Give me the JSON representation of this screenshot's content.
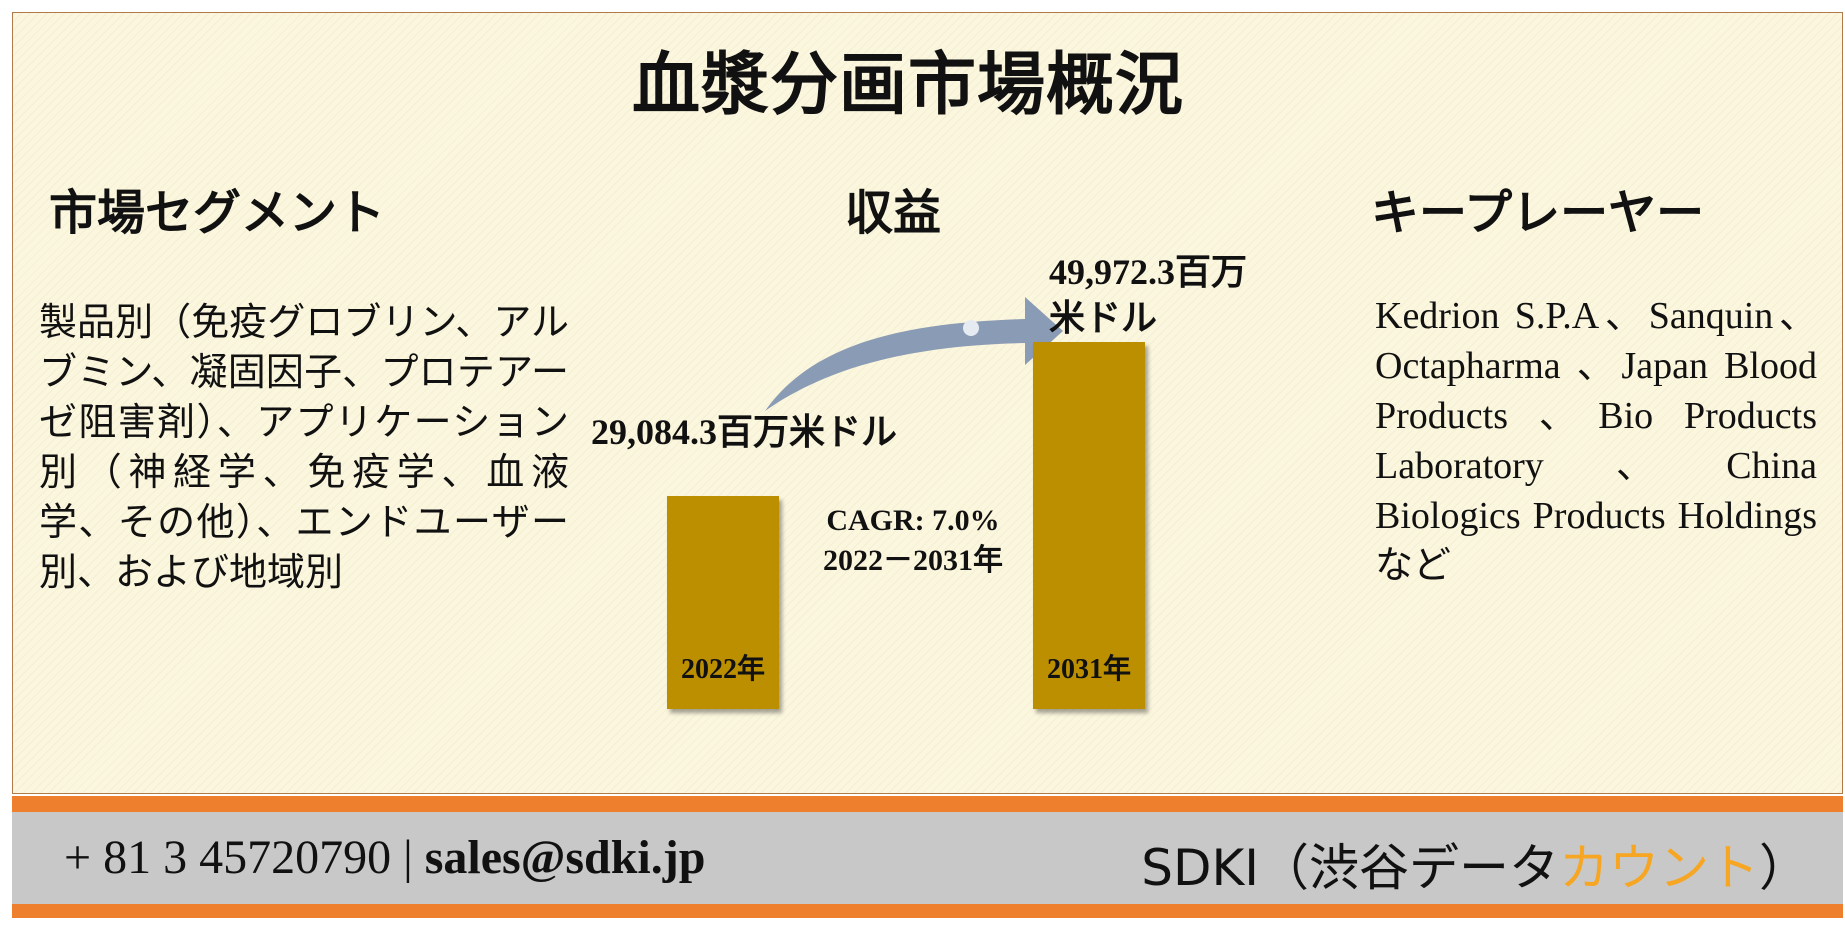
{
  "title": "血漿分画市場概況",
  "segments": {
    "heading": "市場セグメント",
    "body": "製品別（免疫グロブリン、アルブミン、凝固因子、プロテアーゼ阻害剤）、アプリケーション別（神経学、免疫学、血液学、その他）、エンドユーザー別、および地域別"
  },
  "revenue": {
    "heading": "収益",
    "label_2022": "29,084.3百万米ドル",
    "label_2031_line1": "49,972.3百万",
    "label_2031_line2": "米ドル",
    "cagr_line1": "CAGR: 7.0%",
    "cagr_line2": "2022－2031年"
  },
  "key_players": {
    "heading": "キープレーヤー",
    "body": "Kedrion S.P.A、Sanquin、Octapharma 、Japan Blood Products 、Bio Products Laboratory、China Biologics Products Holdingsなど"
  },
  "footer": {
    "phone": "+ 81 3 45720790",
    "separator": " | ",
    "email": "sales@sdki.jp",
    "brand_main": "SDKI（渋谷データ",
    "brand_accent": "カウント",
    "brand_close": "）"
  },
  "colors": {
    "bar": "#bb8f00",
    "orange_band": "#ee7f2d",
    "footer_bg": "#c8c8c8",
    "brand_accent": "#f6a623",
    "arrow": "#8a9bb5"
  },
  "chart_data": {
    "type": "bar",
    "categories": [
      "2022年",
      "2031年"
    ],
    "values": [
      29084.3,
      49972.3
    ],
    "unit": "百万米ドル",
    "title": "収益",
    "annotation": "CAGR: 7.0% 2022－2031年",
    "ylim": [
      0,
      55000
    ]
  }
}
